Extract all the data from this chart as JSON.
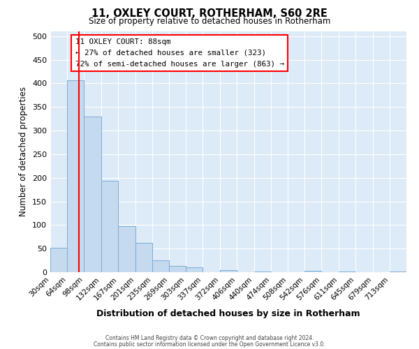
{
  "title": "11, OXLEY COURT, ROTHERHAM, S60 2RE",
  "subtitle": "Size of property relative to detached houses in Rotherham",
  "xlabel": "Distribution of detached houses by size in Rotherham",
  "ylabel": "Number of detached properties",
  "bar_color": "#c5d9ef",
  "bar_edge_color": "#7badd4",
  "background_color": "#ddeaf7",
  "bin_labels": [
    "30sqm",
    "64sqm",
    "98sqm",
    "132sqm",
    "167sqm",
    "201sqm",
    "235sqm",
    "269sqm",
    "303sqm",
    "337sqm",
    "372sqm",
    "406sqm",
    "440sqm",
    "474sqm",
    "508sqm",
    "542sqm",
    "576sqm",
    "611sqm",
    "645sqm",
    "679sqm",
    "713sqm"
  ],
  "bin_edges": [
    30,
    64,
    98,
    132,
    167,
    201,
    235,
    269,
    303,
    337,
    372,
    406,
    440,
    474,
    508,
    542,
    576,
    611,
    645,
    679,
    713
  ],
  "bar_heights": [
    52,
    406,
    330,
    193,
    97,
    62,
    25,
    14,
    10,
    0,
    5,
    0,
    2,
    0,
    0,
    3,
    0,
    2,
    0,
    0,
    2
  ],
  "ylim": [
    0,
    510
  ],
  "yticks": [
    0,
    50,
    100,
    150,
    200,
    250,
    300,
    350,
    400,
    450,
    500
  ],
  "property_size": 88,
  "property_label": "11 OXLEY COURT: 88sqm",
  "annotation_line1": "← 27% of detached houses are smaller (323)",
  "annotation_line2": "72% of semi-detached houses are larger (863) →",
  "red_line_x": 88,
  "footer_line1": "Contains HM Land Registry data © Crown copyright and database right 2024.",
  "footer_line2": "Contains public sector information licensed under the Open Government Licence v3.0."
}
